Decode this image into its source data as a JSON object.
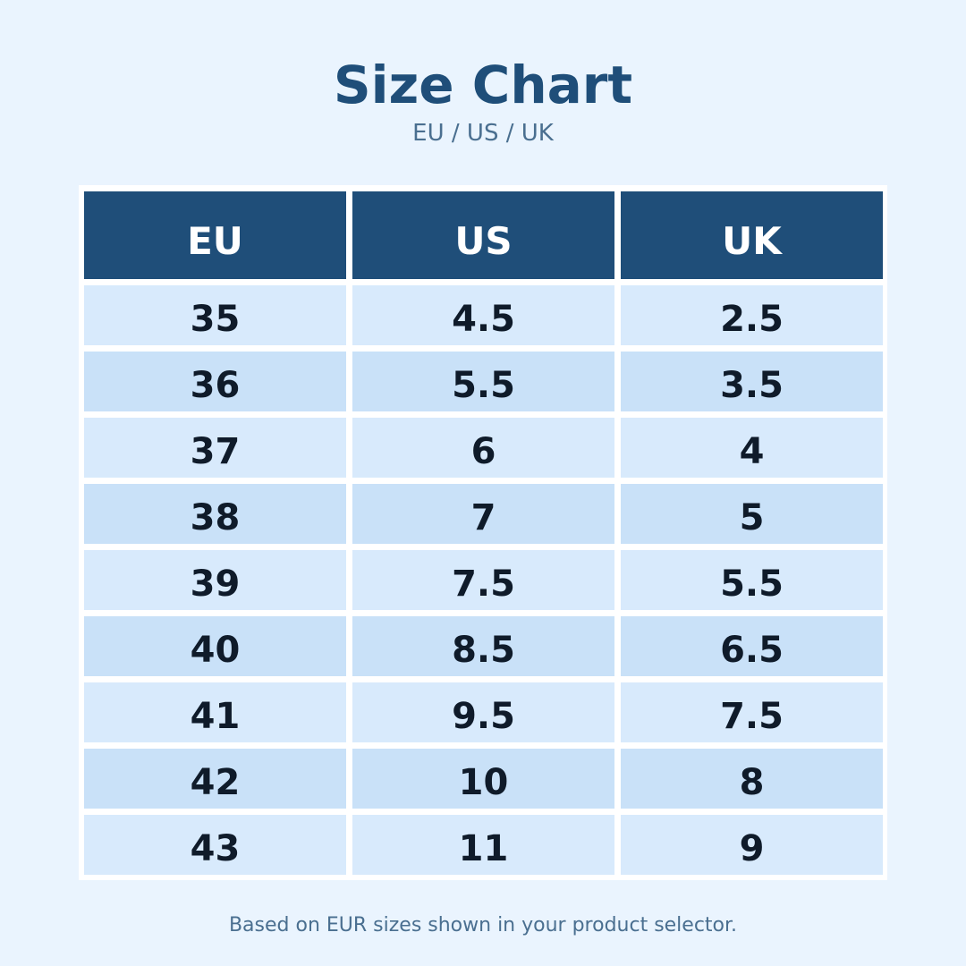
{
  "header": {
    "title": "Size Chart",
    "subtitle": "EU / US / UK"
  },
  "table": {
    "columns": [
      "EU",
      "US",
      "UK"
    ],
    "rows": [
      [
        35,
        4.5,
        2.5
      ],
      [
        36,
        5.5,
        3.5
      ],
      [
        37,
        6,
        4
      ],
      [
        38,
        7,
        5
      ],
      [
        39,
        7.5,
        5.5
      ],
      [
        40,
        8.5,
        6.5
      ],
      [
        41,
        9.5,
        7.5
      ],
      [
        42,
        10,
        8
      ],
      [
        43,
        11,
        9
      ]
    ]
  },
  "footer": {
    "note": "Based on EUR sizes shown in your product selector."
  }
}
